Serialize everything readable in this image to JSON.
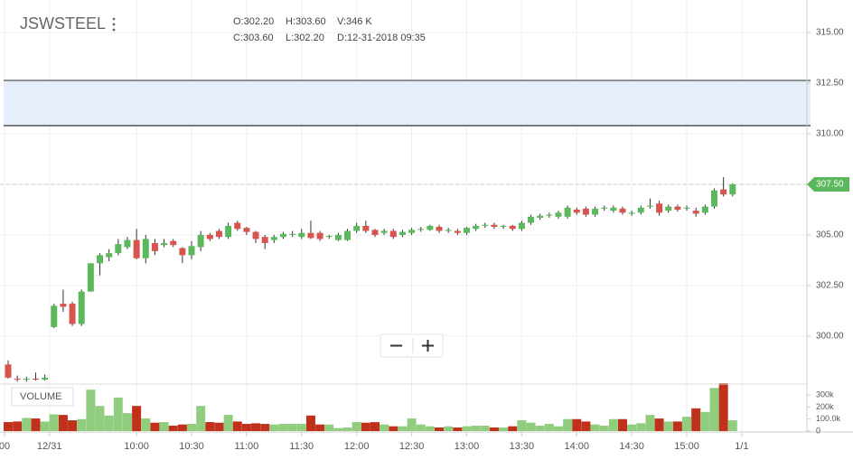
{
  "chart_data": {
    "type": "candlestick",
    "title": "JSWSTEEL",
    "info": [
      "O:302.20",
      "H:303.60",
      "V:346 K",
      "C:303.60",
      "L:302.20",
      "D:12-31-2018 09:35"
    ],
    "up_color": "#5cb85c",
    "down_color": "#d9534f",
    "grid": true,
    "xlim": [
      -0.89,
      87.1
    ],
    "xticks": [
      {
        "value": -0.4,
        "label": "00"
      },
      {
        "value": 4.5,
        "label": "12/31"
      },
      {
        "value": 14,
        "label": "10:00"
      },
      {
        "value": 20,
        "label": "10:30"
      },
      {
        "value": 26,
        "label": "11:00"
      },
      {
        "value": 32,
        "label": "11:30"
      },
      {
        "value": 38,
        "label": "12:00"
      },
      {
        "value": 44,
        "label": "12:30"
      },
      {
        "value": 50,
        "label": "13:00"
      },
      {
        "value": 56,
        "label": "13:30"
      },
      {
        "value": 62,
        "label": "14:00"
      },
      {
        "value": 68,
        "label": "14:30"
      },
      {
        "value": 74,
        "label": "15:00"
      },
      {
        "value": 80,
        "label": "1/1"
      }
    ],
    "ylim": [
      297.63,
      316.61
    ],
    "yticks": [
      {
        "value": 300,
        "label": "300.00"
      },
      {
        "value": 302.5,
        "label": "302.50"
      },
      {
        "value": 305,
        "label": "305.00"
      },
      {
        "value": 307.5,
        "label": "307.50"
      },
      {
        "value": 310,
        "label": "310.00"
      },
      {
        "value": 312.5,
        "label": "312.50"
      },
      {
        "value": 315,
        "label": "315.00"
      }
    ],
    "last_price": {
      "value": 307.5,
      "label": "307.50"
    },
    "open": [
      298.6,
      297.9,
      297.85,
      297.9,
      297.85,
      300.45,
      301.6,
      301.6,
      300.6,
      302.2,
      303.6,
      303.9,
      304.1,
      304.4,
      304.75,
      303.85,
      304.6,
      304.5,
      304.7,
      304.35,
      304.0,
      304.4,
      305.0,
      305.2,
      304.9,
      305.6,
      305.35,
      305.15,
      304.9,
      304.75,
      304.9,
      305.0,
      304.9,
      305.1,
      305.1,
      304.9,
      304.75,
      304.75,
      305.2,
      305.45,
      305.25,
      305.1,
      305.2,
      305.0,
      305.1,
      305.25,
      305.25,
      305.4,
      305.2,
      305.2,
      305.1,
      305.3,
      305.45,
      305.5,
      305.4,
      305.45,
      305.3,
      305.6,
      305.85,
      305.95,
      305.9,
      305.9,
      306.25,
      306.3,
      306.0,
      306.3,
      306.2,
      306.3,
      306.05,
      306.1,
      306.4,
      306.55,
      306.2,
      306.4,
      306.3,
      306.2,
      306.1,
      306.4,
      307.25,
      307.0
    ],
    "high": [
      298.8,
      298.05,
      298.0,
      298.2,
      298.1,
      301.6,
      302.3,
      301.7,
      302.3,
      303.6,
      304.1,
      304.3,
      304.8,
      304.9,
      305.3,
      305.0,
      304.8,
      304.8,
      304.8,
      304.4,
      304.7,
      305.2,
      305.1,
      305.3,
      305.6,
      305.7,
      305.4,
      305.2,
      305.0,
      305.0,
      305.15,
      305.2,
      305.3,
      305.7,
      305.2,
      305.0,
      305.1,
      305.3,
      305.6,
      305.7,
      305.3,
      305.3,
      305.3,
      305.25,
      305.35,
      305.4,
      305.5,
      305.5,
      305.35,
      305.3,
      305.4,
      305.55,
      305.6,
      305.6,
      305.5,
      305.5,
      305.7,
      306.0,
      306.05,
      306.1,
      306.2,
      306.45,
      306.35,
      306.4,
      306.4,
      306.45,
      306.45,
      306.4,
      306.2,
      306.45,
      306.8,
      306.7,
      306.5,
      306.5,
      306.45,
      306.35,
      306.5,
      307.3,
      307.85,
      307.55
    ],
    "low": [
      297.9,
      297.75,
      297.75,
      297.8,
      297.8,
      300.4,
      301.2,
      300.5,
      300.5,
      302.2,
      303.0,
      303.7,
      304.0,
      304.3,
      303.8,
      303.6,
      304.0,
      304.4,
      304.4,
      303.6,
      303.8,
      304.2,
      304.7,
      304.8,
      304.8,
      305.2,
      305.0,
      304.6,
      304.3,
      304.6,
      304.8,
      304.9,
      304.8,
      304.8,
      304.7,
      304.8,
      304.7,
      304.7,
      305.1,
      305.1,
      304.9,
      305.0,
      304.8,
      304.9,
      305.0,
      305.15,
      305.2,
      305.1,
      305.1,
      305.0,
      305.0,
      305.2,
      305.35,
      305.3,
      305.3,
      305.2,
      305.2,
      305.5,
      305.75,
      305.85,
      305.8,
      305.8,
      306.0,
      305.9,
      305.9,
      306.2,
      306.1,
      306.0,
      305.95,
      306.0,
      306.3,
      305.95,
      306.1,
      306.15,
      306.2,
      305.9,
      306.0,
      306.3,
      306.9,
      306.9
    ],
    "close": [
      297.95,
      297.85,
      297.9,
      297.85,
      297.95,
      301.5,
      301.45,
      300.6,
      302.2,
      303.6,
      304.0,
      304.1,
      304.55,
      304.75,
      303.85,
      304.8,
      304.2,
      304.6,
      304.5,
      304.0,
      304.45,
      305.0,
      304.8,
      304.9,
      305.45,
      305.3,
      305.15,
      304.8,
      304.6,
      304.9,
      305.05,
      305.05,
      305.1,
      304.85,
      304.8,
      304.95,
      305.0,
      305.2,
      305.45,
      305.2,
      305.0,
      305.2,
      304.9,
      305.15,
      305.25,
      305.3,
      305.45,
      305.2,
      305.25,
      305.1,
      305.35,
      305.45,
      305.5,
      305.4,
      305.45,
      305.3,
      305.6,
      305.9,
      305.95,
      306.0,
      306.1,
      306.35,
      306.1,
      306.0,
      306.3,
      306.35,
      306.35,
      306.1,
      306.1,
      306.35,
      306.45,
      306.1,
      306.4,
      306.25,
      306.35,
      306.05,
      306.4,
      307.2,
      307.0,
      307.5
    ],
    "volume": {
      "name": "VOLUME",
      "up_color": "#90cd7e",
      "down_color": "#c0301a",
      "ylim": [
        0,
        400000
      ],
      "yticks": [
        0,
        {
          "value": 100000,
          "label": "100.0k"
        },
        {
          "value": 200000,
          "label": "200k"
        },
        {
          "value": 300000,
          "label": "300k"
        }
      ],
      "values": [
        75000,
        80000,
        110000,
        105000,
        80000,
        140000,
        135000,
        90000,
        100000,
        346000,
        210000,
        130000,
        280000,
        150000,
        210000,
        105000,
        70000,
        75000,
        45000,
        55000,
        60000,
        210000,
        75000,
        70000,
        135000,
        80000,
        60000,
        65000,
        60000,
        55000,
        60000,
        60000,
        60000,
        130000,
        55000,
        55000,
        25000,
        30000,
        75000,
        70000,
        75000,
        55000,
        40000,
        40000,
        105000,
        55000,
        40000,
        30000,
        40000,
        30000,
        40000,
        45000,
        45000,
        30000,
        30000,
        40000,
        90000,
        70000,
        45000,
        60000,
        40000,
        100000,
        100000,
        80000,
        55000,
        45000,
        100000,
        100000,
        55000,
        65000,
        135000,
        105000,
        80000,
        80000,
        120000,
        190000,
        160000,
        360000,
        400000,
        90000
      ]
    }
  }
}
